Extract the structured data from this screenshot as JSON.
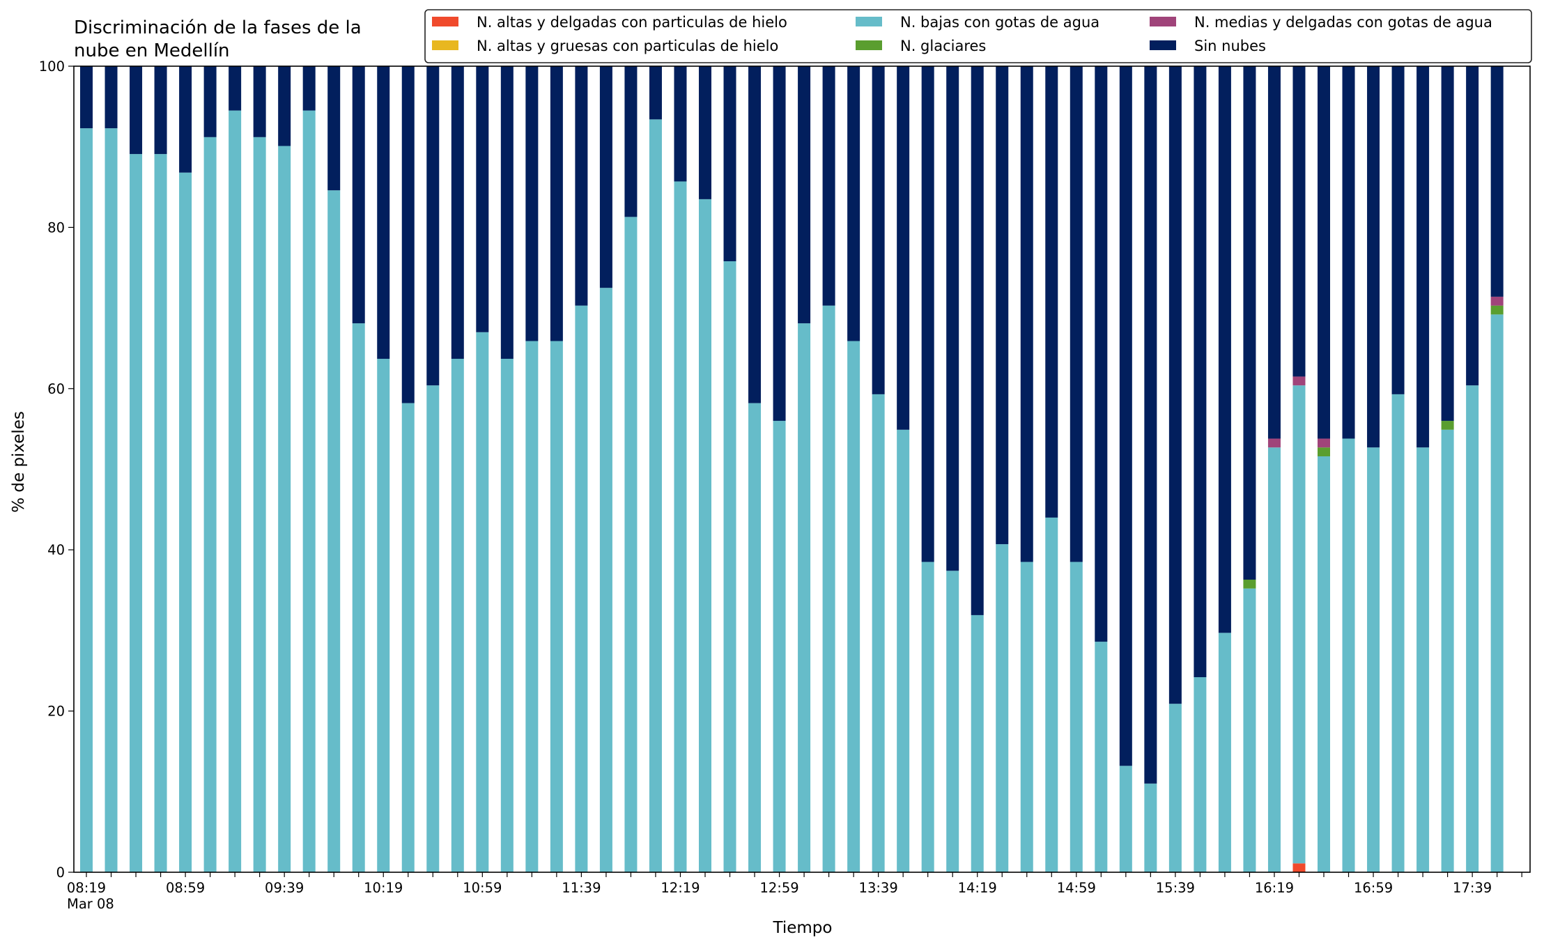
{
  "chart_data": {
    "type": "bar",
    "stacked": true,
    "title": "Discriminación de la fases de la\nnube en Medellín",
    "xlabel": "Tiempo",
    "ylabel": "% de pixeles",
    "ylim": [
      0,
      100
    ],
    "yticks": [
      0,
      20,
      40,
      60,
      80,
      100
    ],
    "grid": false,
    "legend_position": "top-right",
    "legend_columns": 3,
    "categories": [
      "08:19",
      "08:29",
      "08:39",
      "08:49",
      "08:59",
      "09:09",
      "09:19",
      "09:29",
      "09:39",
      "09:49",
      "09:59",
      "10:09",
      "10:19",
      "10:29",
      "10:39",
      "10:49",
      "10:59",
      "11:09",
      "11:19",
      "11:29",
      "11:39",
      "11:49",
      "11:59",
      "12:09",
      "12:19",
      "12:29",
      "12:39",
      "12:49",
      "12:59",
      "13:09",
      "13:19",
      "13:29",
      "13:39",
      "13:49",
      "13:59",
      "14:09",
      "14:19",
      "14:29",
      "14:39",
      "14:49",
      "14:59",
      "15:09",
      "15:19",
      "15:29",
      "15:39",
      "15:49",
      "15:59",
      "16:09",
      "16:19",
      "16:29",
      "16:39",
      "16:49",
      "16:59",
      "17:09",
      "17:19",
      "17:29",
      "17:39",
      "17:49"
    ],
    "xtick_labels": [
      {
        "index": 0,
        "label": "08:19",
        "sublabel": "Mar 08"
      },
      {
        "index": 4,
        "label": "08:59"
      },
      {
        "index": 8,
        "label": "09:39"
      },
      {
        "index": 12,
        "label": "10:19"
      },
      {
        "index": 16,
        "label": "10:59"
      },
      {
        "index": 20,
        "label": "11:39"
      },
      {
        "index": 24,
        "label": "12:19"
      },
      {
        "index": 28,
        "label": "12:59"
      },
      {
        "index": 32,
        "label": "13:39"
      },
      {
        "index": 36,
        "label": "14:19"
      },
      {
        "index": 40,
        "label": "14:59"
      },
      {
        "index": 44,
        "label": "15:39"
      },
      {
        "index": 48,
        "label": "16:19"
      },
      {
        "index": 52,
        "label": "16:59"
      },
      {
        "index": 56,
        "label": "17:39"
      }
    ],
    "series": [
      {
        "name": "N. altas y delgadas con particulas de hielo",
        "color": "#f04a2c",
        "values": [
          0,
          0,
          0,
          0,
          0,
          0,
          0,
          0,
          0,
          0,
          0,
          0,
          0,
          0,
          0,
          0,
          0,
          0,
          0,
          0,
          0,
          0,
          0,
          0,
          0,
          0,
          0,
          0,
          0,
          0,
          0,
          0,
          0,
          0,
          0,
          0,
          0,
          0,
          0,
          0,
          0,
          0,
          0,
          0,
          0,
          0,
          0,
          0,
          0,
          1.1,
          0,
          0,
          0,
          0,
          0,
          0,
          0,
          0
        ]
      },
      {
        "name": "N. altas y gruesas con particulas de hielo",
        "color": "#e8b720",
        "values": [
          0,
          0,
          0,
          0,
          0,
          0,
          0,
          0,
          0,
          0,
          0,
          0,
          0,
          0,
          0,
          0,
          0,
          0,
          0,
          0,
          0,
          0,
          0,
          0,
          0,
          0,
          0,
          0,
          0,
          0,
          0,
          0,
          0,
          0,
          0,
          0,
          0,
          0,
          0,
          0,
          0,
          0,
          0,
          0,
          0,
          0,
          0,
          0,
          0,
          0,
          0,
          0,
          0,
          0,
          0,
          0,
          0,
          0
        ]
      },
      {
        "name": "N. bajas con gotas de agua",
        "color": "#66bcc9",
        "values": [
          92.3,
          92.3,
          89.1,
          89.1,
          86.8,
          91.2,
          94.5,
          91.2,
          90.1,
          94.5,
          84.6,
          68.1,
          63.7,
          58.2,
          60.4,
          63.7,
          67,
          63.7,
          65.9,
          65.9,
          70.3,
          72.5,
          81.3,
          93.4,
          85.7,
          83.5,
          75.8,
          58.2,
          56,
          68.1,
          70.3,
          65.9,
          59.3,
          54.9,
          38.5,
          37.4,
          31.9,
          40.7,
          38.5,
          44,
          38.5,
          28.6,
          13.2,
          11,
          20.9,
          24.2,
          29.7,
          35.2,
          52.7,
          59.3,
          51.6,
          53.8,
          52.7,
          59.3,
          52.7,
          54.9,
          60.4,
          69.2
        ]
      },
      {
        "name": "N. glaciares",
        "color": "#5a9e2f",
        "values": [
          0,
          0,
          0,
          0,
          0,
          0,
          0,
          0,
          0,
          0,
          0,
          0,
          0,
          0,
          0,
          0,
          0,
          0,
          0,
          0,
          0,
          0,
          0,
          0,
          0,
          0,
          0,
          0,
          0,
          0,
          0,
          0,
          0,
          0,
          0,
          0,
          0,
          0,
          0,
          0,
          0,
          0,
          0,
          0,
          0,
          0,
          0,
          1.1,
          0,
          0,
          1.1,
          0,
          0,
          0,
          0,
          1.1,
          0,
          1.1
        ]
      },
      {
        "name": "N. medias y delgadas con gotas de agua",
        "color": "#a0447a",
        "values": [
          0,
          0,
          0,
          0,
          0,
          0,
          0,
          0,
          0,
          0,
          0,
          0,
          0,
          0,
          0,
          0,
          0,
          0,
          0,
          0,
          0,
          0,
          0,
          0,
          0,
          0,
          0,
          0,
          0,
          0,
          0,
          0,
          0,
          0,
          0,
          0,
          0,
          0,
          0,
          0,
          0,
          0,
          0,
          0,
          0,
          0,
          0,
          0,
          1.1,
          1.1,
          1.1,
          0,
          0,
          0,
          0,
          0,
          0,
          1.1
        ]
      },
      {
        "name": "Sin nubes",
        "color": "#021f5d",
        "values": [
          7.7,
          7.7,
          10.9,
          10.9,
          13.2,
          8.8,
          5.5,
          8.8,
          9.9,
          5.5,
          15.4,
          31.9,
          36.3,
          41.8,
          39.6,
          36.3,
          33,
          36.3,
          34.1,
          34.1,
          29.7,
          27.5,
          18.7,
          6.6,
          14.3,
          16.5,
          24.2,
          41.8,
          44,
          31.9,
          29.7,
          34.1,
          40.7,
          45.1,
          61.5,
          62.6,
          68.1,
          59.3,
          61.5,
          56,
          61.5,
          71.4,
          86.8,
          89,
          79.1,
          75.8,
          70.3,
          63.7,
          46.2,
          38.5,
          46.2,
          46.2,
          47.3,
          40.7,
          47.3,
          44,
          39.6,
          28.6
        ]
      }
    ]
  }
}
